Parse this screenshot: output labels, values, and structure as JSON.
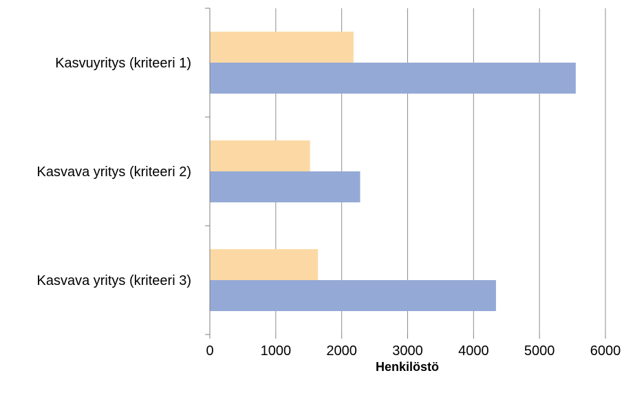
{
  "chart_data": {
    "type": "bar",
    "orientation": "horizontal",
    "categories": [
      "Kasvuyritys (kriteeri 1)",
      "Kasvava yritys (kriteeri 2)",
      "Kasvava yritys (kriteeri 3)"
    ],
    "series": [
      {
        "values": [
          2180,
          1520,
          1640
        ],
        "color": "#fcd9a4"
      },
      {
        "values": [
          5550,
          2280,
          4340
        ],
        "color": "#94a9d6"
      }
    ],
    "xlabel": "Henkilöstö",
    "ylabel": "",
    "xlim": [
      0,
      6000
    ],
    "x_ticks": [
      "0",
      "1000",
      "2000",
      "3000",
      "4000",
      "5000",
      "6000"
    ],
    "grid": "vertical",
    "legend": "none"
  }
}
